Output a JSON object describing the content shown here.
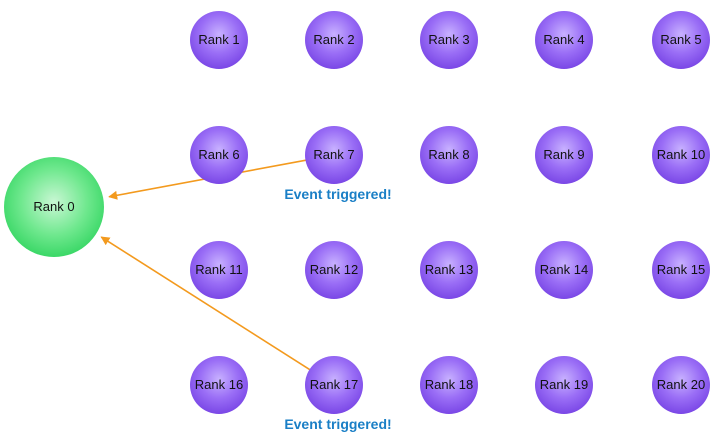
{
  "colors": {
    "worker_fill": "#8a5cf0",
    "master_fill": "#3ddc6a",
    "arrow": "#f39a1e",
    "event_text": "#1a7fc6"
  },
  "master": {
    "label": "Rank 0"
  },
  "workers": [
    {
      "label": "Rank 1"
    },
    {
      "label": "Rank 2"
    },
    {
      "label": "Rank 3"
    },
    {
      "label": "Rank 4"
    },
    {
      "label": "Rank 5"
    },
    {
      "label": "Rank 6"
    },
    {
      "label": "Rank 7"
    },
    {
      "label": "Rank 8"
    },
    {
      "label": "Rank 9"
    },
    {
      "label": "Rank 10"
    },
    {
      "label": "Rank 11"
    },
    {
      "label": "Rank 12"
    },
    {
      "label": "Rank 13"
    },
    {
      "label": "Rank 14"
    },
    {
      "label": "Rank 15"
    },
    {
      "label": "Rank 16"
    },
    {
      "label": "Rank 17"
    },
    {
      "label": "Rank 18"
    },
    {
      "label": "Rank 19"
    },
    {
      "label": "Rank 20"
    }
  ],
  "events": [
    {
      "from": "Rank 7",
      "to": "Rank 0",
      "label": "Event triggered!"
    },
    {
      "from": "Rank 17",
      "to": "Rank 0",
      "label": "Event triggered!"
    }
  ]
}
